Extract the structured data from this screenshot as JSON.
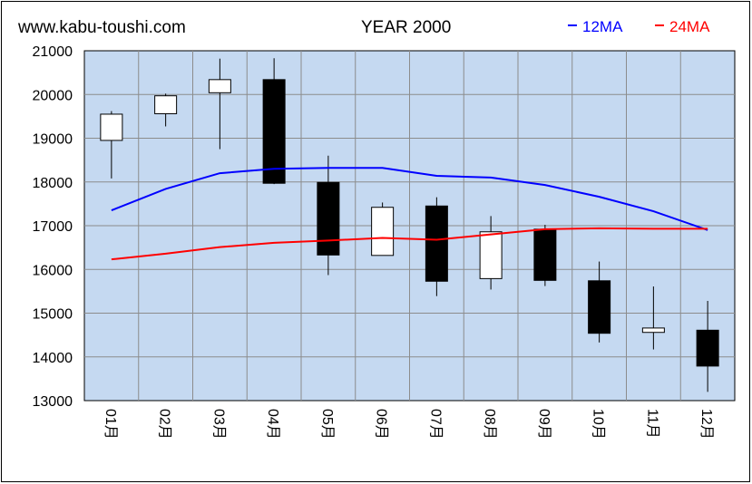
{
  "header": {
    "site": "www.kabu-toushi.com",
    "title": "YEAR 2000"
  },
  "chart_data": {
    "type": "candlestick",
    "title": "YEAR 2000",
    "categories": [
      "01月",
      "02月",
      "03月",
      "04月",
      "05月",
      "06月",
      "07月",
      "08月",
      "09月",
      "10月",
      "11月",
      "12月"
    ],
    "ohlc": [
      {
        "open": 18950,
        "high": 19620,
        "low": 18080,
        "close": 19550
      },
      {
        "open": 19560,
        "high": 20020,
        "low": 19270,
        "close": 19970
      },
      {
        "open": 20040,
        "high": 20820,
        "low": 18750,
        "close": 20340
      },
      {
        "open": 20340,
        "high": 20830,
        "low": 17950,
        "close": 17970
      },
      {
        "open": 17990,
        "high": 18600,
        "low": 15870,
        "close": 16330
      },
      {
        "open": 16320,
        "high": 17530,
        "low": 16320,
        "close": 17420
      },
      {
        "open": 17450,
        "high": 17650,
        "low": 15390,
        "close": 15730
      },
      {
        "open": 15790,
        "high": 17220,
        "low": 15540,
        "close": 16860
      },
      {
        "open": 16920,
        "high": 17020,
        "low": 15620,
        "close": 15750
      },
      {
        "open": 15740,
        "high": 16180,
        "low": 14330,
        "close": 14540
      },
      {
        "open": 14560,
        "high": 15610,
        "low": 14170,
        "close": 14660
      },
      {
        "open": 14610,
        "high": 15280,
        "low": 13200,
        "close": 13790
      }
    ],
    "series": [
      {
        "name": "12MA",
        "color": "#0000ff",
        "values": [
          17350,
          17840,
          18200,
          18300,
          18320,
          18320,
          18140,
          18100,
          17930,
          17660,
          17330,
          16900
        ]
      },
      {
        "name": "24MA",
        "color": "#ff0000",
        "values": [
          16230,
          16360,
          16510,
          16610,
          16660,
          16720,
          16680,
          16800,
          16920,
          16940,
          16930,
          16930
        ]
      }
    ],
    "ylim": [
      13000,
      21000
    ],
    "yticks": [
      "13000",
      "14000",
      "15000",
      "16000",
      "17000",
      "18000",
      "19000",
      "20000",
      "21000"
    ],
    "grid": true,
    "legend_position": "top-right",
    "colors": {
      "plot_bg": "#c5d9f1",
      "up_candle": "#ffffff",
      "down_candle": "#000000",
      "grid": "#8c8c8c"
    }
  }
}
